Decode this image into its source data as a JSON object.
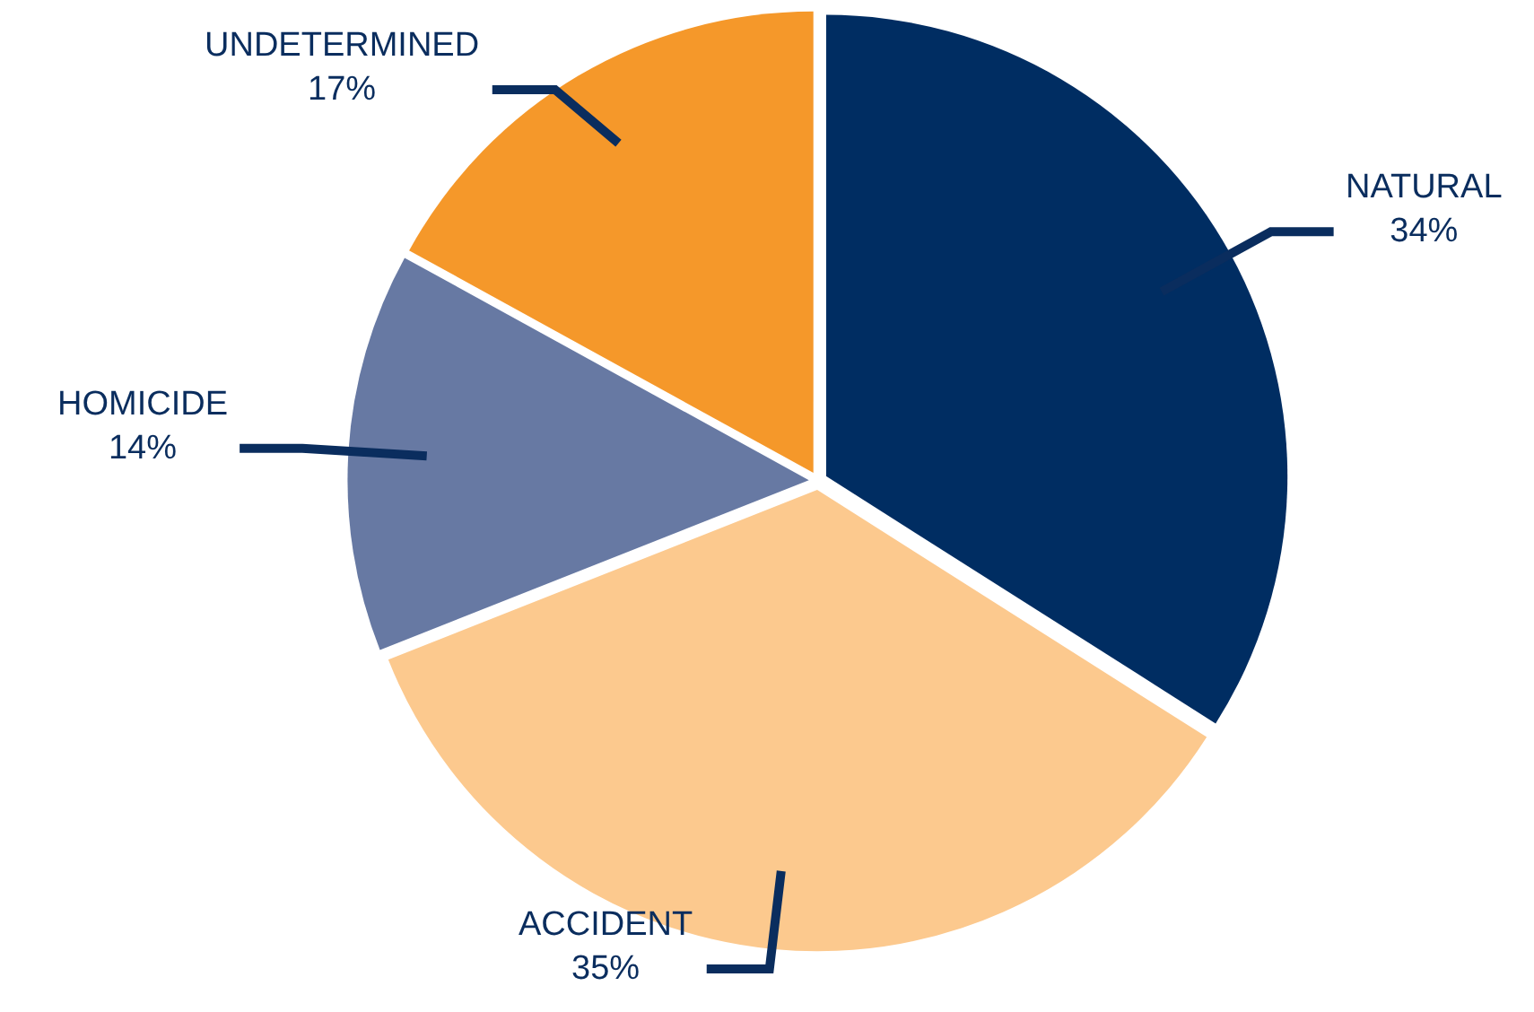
{
  "chart_data": {
    "type": "pie",
    "categories": [
      "NATURAL",
      "ACCIDENT",
      "HOMICIDE",
      "UNDETERMINED"
    ],
    "values": [
      34,
      35,
      14,
      17
    ],
    "value_labels": [
      "34%",
      "35%",
      "14%",
      "17%"
    ],
    "colors": [
      "#002d62",
      "#fcc98e",
      "#6779a3",
      "#f5982a"
    ]
  }
}
